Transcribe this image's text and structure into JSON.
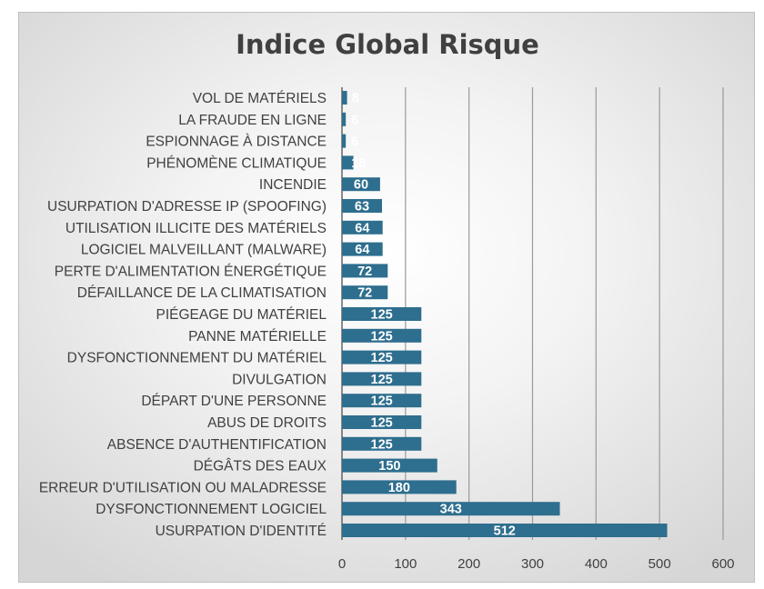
{
  "chart_data": {
    "type": "bar",
    "orientation": "horizontal",
    "title": "Indice Global Risque",
    "xlabel": "",
    "ylabel": "",
    "xlim": [
      0,
      600
    ],
    "ticks": [
      0,
      100,
      200,
      300,
      400,
      500,
      600
    ],
    "grid": true,
    "legend": "none",
    "bar_color": "#2e6e8e",
    "categories": [
      "VOL DE MATÉRIELS",
      "LA FRAUDE EN LIGNE",
      "ESPIONNAGE À DISTANCE",
      "PHÉNOMÈNE CLIMATIQUE",
      "INCENDIE",
      "USURPATION D'ADRESSE IP (SPOOFING)",
      "UTILISATION ILLICITE DES MATÉRIELS",
      "LOGICIEL MALVEILLANT (MALWARE)",
      "PERTE D'ALIMENTATION ÉNERGÉTIQUE",
      "DÉFAILLANCE DE LA CLIMATISATION",
      "PIÉGEAGE DU MATÉRIEL",
      "PANNE MATÉRIELLE",
      "DYSFONCTIONNEMENT DU MATÉRIEL",
      "DIVULGATION",
      "DÉPART D'UNE PERSONNE",
      "ABUS DE DROITS",
      "ABSENCE D'AUTHENTIFICATION",
      "DÉGÂTS DES EAUX",
      "ERREUR D'UTILISATION OU MALADRESSE",
      "DYSFONCTIONNEMENT LOGICIEL",
      "USURPATION D'IDENTITÉ"
    ],
    "values": [
      8,
      6,
      6,
      18,
      60,
      63,
      64,
      64,
      72,
      72,
      125,
      125,
      125,
      125,
      125,
      125,
      125,
      150,
      180,
      343,
      512
    ]
  }
}
